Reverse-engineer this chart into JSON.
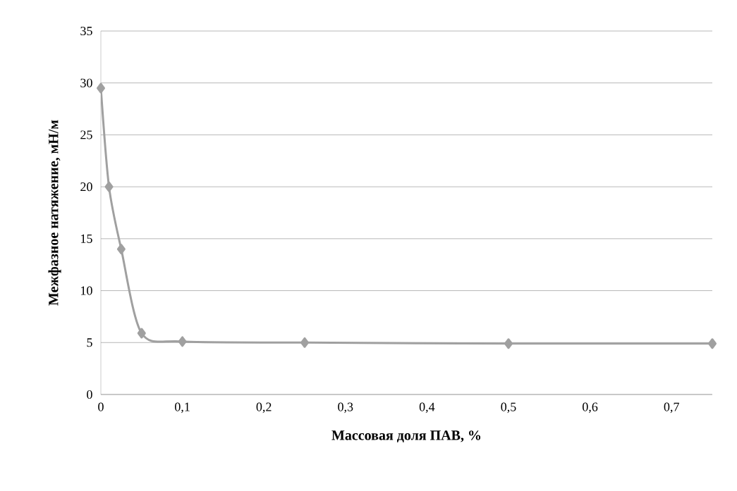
{
  "chart_data": {
    "type": "line",
    "xlabel": "Массовая доля ПАВ, %",
    "ylabel": "Межфазное натяжение, мН/м",
    "x": [
      0,
      0.01,
      0.025,
      0.05,
      0.1,
      0.25,
      0.5,
      0.75
    ],
    "series": [
      {
        "color": "#a0a0a0",
        "values": [
          29.5,
          20.0,
          14.0,
          5.9,
          5.1,
          5.0,
          4.9,
          4.9
        ]
      }
    ],
    "xlim": [
      0,
      0.75
    ],
    "ylim": [
      0,
      35
    ],
    "xticks": [
      0,
      {
        "value": 0.1,
        "label": "0,1"
      },
      {
        "value": 0.2,
        "label": "0,2"
      },
      {
        "value": 0.3,
        "label": "0,3"
      },
      {
        "value": 0.4,
        "label": "0,4"
      },
      {
        "value": 0.5,
        "label": "0,5"
      },
      {
        "value": 0.6,
        "label": "0,6"
      },
      {
        "value": 0.7,
        "label": "0,7"
      }
    ],
    "yticks": [
      0,
      5,
      10,
      15,
      20,
      25,
      30,
      35
    ],
    "grid": "y",
    "marker": "diamond",
    "line_style": "solid"
  }
}
